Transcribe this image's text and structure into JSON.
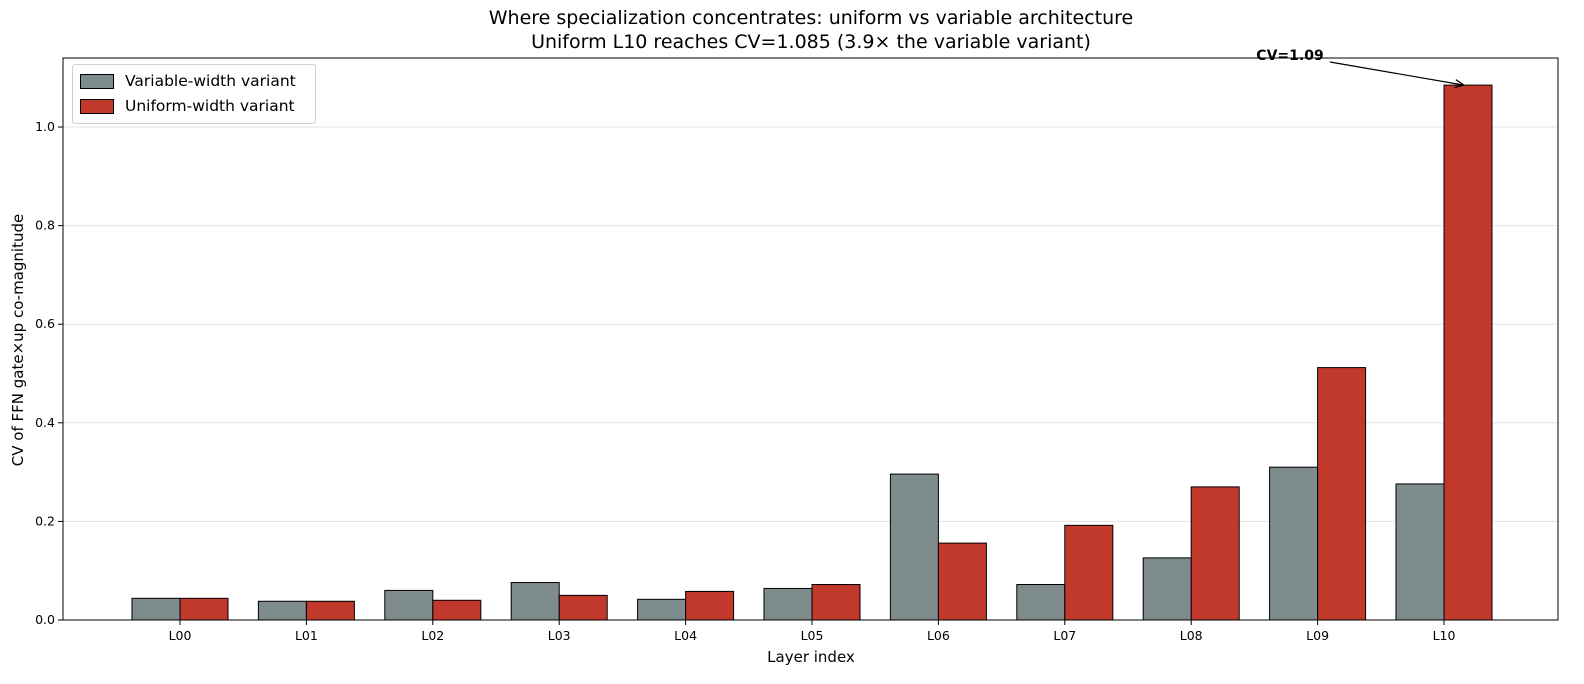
{
  "chart_data": {
    "type": "bar",
    "title": "Where specialization concentrates: uniform vs variable architecture",
    "subtitle": "Uniform L10 reaches CV=1.085 (3.9× the variable variant)",
    "xlabel": "Layer index",
    "ylabel": "CV of FFN gate×up co-magnitude",
    "categories": [
      "L00",
      "L01",
      "L02",
      "L03",
      "L04",
      "L05",
      "L06",
      "L07",
      "L08",
      "L09",
      "L10"
    ],
    "series": [
      {
        "name": "Variable-width variant",
        "color": "#7f8c8d",
        "values": [
          0.044,
          0.038,
          0.06,
          0.076,
          0.042,
          0.064,
          0.296,
          0.072,
          0.126,
          0.31,
          0.276
        ]
      },
      {
        "name": "Uniform-width variant",
        "color": "#c0392b",
        "values": [
          0.044,
          0.038,
          0.04,
          0.05,
          0.058,
          0.072,
          0.156,
          0.192,
          0.27,
          0.512,
          1.085
        ]
      }
    ],
    "ylim": [
      0,
      1.14
    ],
    "yticks": [
      "0.0",
      "0.2",
      "0.4",
      "0.6",
      "0.8",
      "1.0"
    ],
    "grid": "horizontal",
    "legend": "upper-left",
    "annotation": {
      "text": "CV=1.09",
      "category": "L10",
      "series": "Uniform-width variant",
      "value": 1.085
    }
  }
}
